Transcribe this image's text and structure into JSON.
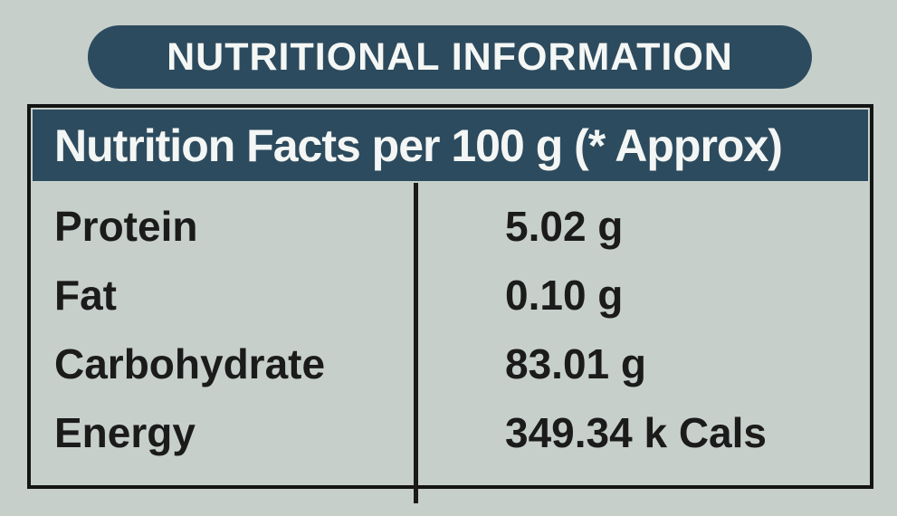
{
  "colors": {
    "background": "#c7cfcb",
    "accent_teal": "#2d4b5e",
    "border_dark": "#141414",
    "text_dark": "#1b1b1b",
    "text_light": "#f5f7f5"
  },
  "banner": {
    "title": "NUTRITIONAL INFORMATION"
  },
  "table": {
    "header": "Nutrition Facts per 100 g (* Approx)",
    "rows": [
      {
        "label": "Protein",
        "value": "5.02 g"
      },
      {
        "label": "Fat",
        "value": "0.10 g"
      },
      {
        "label": "Carbohydrate",
        "value": "83.01 g"
      },
      {
        "label": "Energy",
        "value": "349.34 k Cals"
      }
    ]
  }
}
